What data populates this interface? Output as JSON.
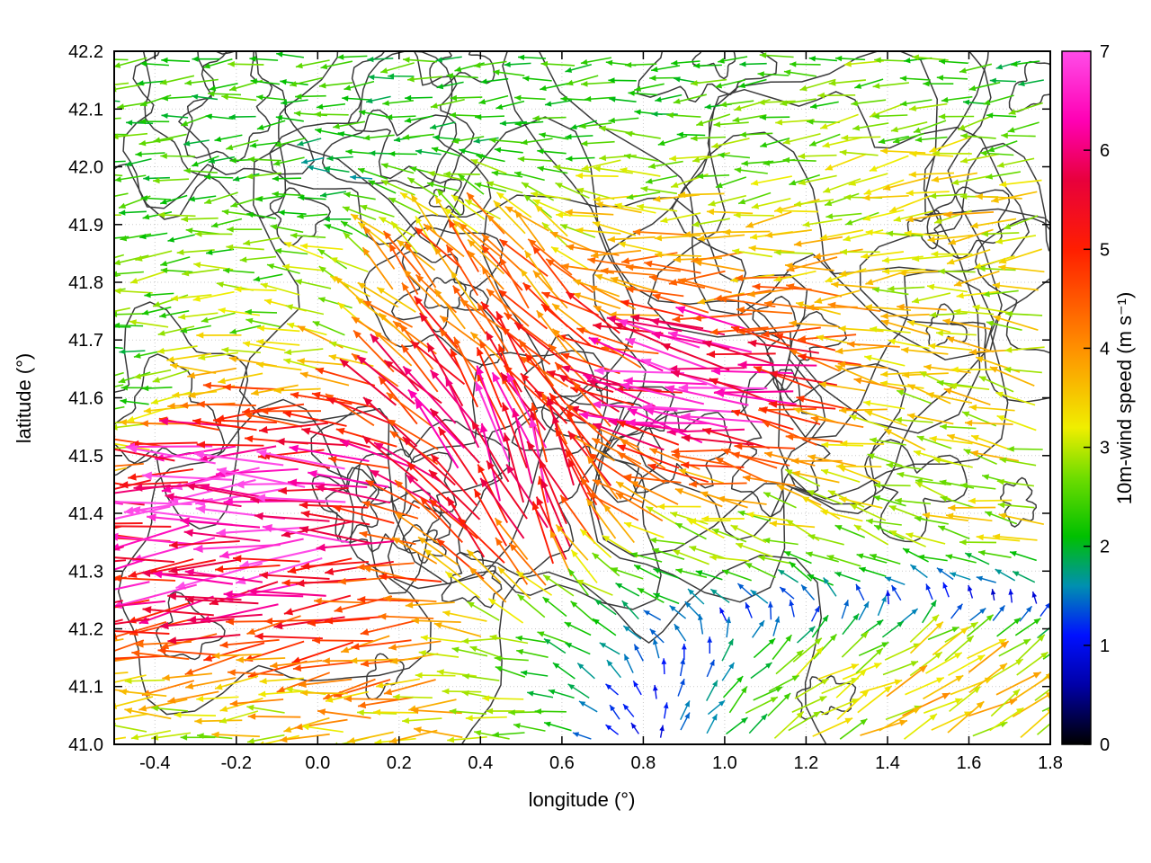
{
  "chart_data": {
    "type": "quiver",
    "title": "",
    "xlabel": "longitude (°)",
    "ylabel": "latitude (°)",
    "xlim": [
      -0.5,
      1.8
    ],
    "ylim": [
      41.0,
      42.2
    ],
    "x_ticks": [
      -0.4,
      -0.2,
      0.0,
      0.2,
      0.4,
      0.6,
      0.8,
      1.0,
      1.2,
      1.4,
      1.6,
      1.8
    ],
    "x_tick_labels": [
      "-0.4",
      "-0.2",
      "0.0",
      "0.2",
      "0.4",
      "0.6",
      "0.8",
      "1.0",
      "1.2",
      "1.4",
      "1.6",
      "1.8"
    ],
    "y_ticks": [
      41.0,
      41.1,
      41.2,
      41.3,
      41.4,
      41.5,
      41.6,
      41.7,
      41.8,
      41.9,
      42.0,
      42.1,
      42.2
    ],
    "y_tick_labels": [
      "41.0",
      "41.1",
      "41.2",
      "41.3",
      "41.4",
      "41.5",
      "41.6",
      "41.7",
      "41.8",
      "41.9",
      "42.0",
      "42.1",
      "42.2"
    ],
    "grid": true,
    "colorbar": {
      "label": "10m-wind speed (m s⁻¹)",
      "min": 0,
      "max": 7,
      "ticks": [
        0,
        1,
        2,
        3,
        4,
        5,
        6,
        7
      ],
      "tick_labels": [
        "0",
        "1",
        "2",
        "3",
        "4",
        "5",
        "6",
        "7"
      ],
      "palette": [
        {
          "v": 0.0,
          "c": "#000000"
        },
        {
          "v": 0.6,
          "c": "#0000a8"
        },
        {
          "v": 1.1,
          "c": "#0010ff"
        },
        {
          "v": 1.6,
          "c": "#0090b0"
        },
        {
          "v": 2.1,
          "c": "#00c000"
        },
        {
          "v": 2.7,
          "c": "#70dd00"
        },
        {
          "v": 3.2,
          "c": "#f0ee00"
        },
        {
          "v": 4.0,
          "c": "#ff9000"
        },
        {
          "v": 5.0,
          "c": "#ff1e00"
        },
        {
          "v": 5.7,
          "c": "#e8003c"
        },
        {
          "v": 6.3,
          "c": "#ff00b4"
        },
        {
          "v": 7.0,
          "c": "#ff4ce8"
        }
      ]
    },
    "contours": {
      "description": "unlabeled black terrain elevation contour lines",
      "color": "#3a3a3a",
      "width": 1.5,
      "seed": 11,
      "loop_count": 34,
      "large_count": 9
    },
    "wind_field": {
      "description": "10 m wind vectors on a regular lon-lat grid; arrow length and color scale with speed; predominantly easterly (arrows point west), turning southerly with 6-7 m/s maxima in the centre and west band, weak 1-2 m/s flow along the northern edge",
      "grid": {
        "nx": 42,
        "ny": 36
      },
      "base": {
        "dir": 180,
        "speed": 3.0,
        "w": 0.55
      },
      "jitter": {
        "seed": 20,
        "dir_deg": 14,
        "speed_frac": 0.18
      },
      "features": [
        {
          "x": 0.5,
          "y": 41.44,
          "rx": 0.22,
          "ry": 0.16,
          "dir": 95,
          "speed": 8.5,
          "w": 1.6
        },
        {
          "x": 0.3,
          "y": 41.56,
          "rx": 0.18,
          "ry": 0.12,
          "dir": 135,
          "speed": 6.5,
          "w": 1.0
        },
        {
          "x": -0.1,
          "y": 41.4,
          "rx": 0.45,
          "ry": 0.14,
          "dir": 183,
          "speed": 8.2,
          "w": 1.5
        },
        {
          "x": -0.32,
          "y": 41.28,
          "rx": 0.3,
          "ry": 0.1,
          "dir": 190,
          "speed": 6.0,
          "w": 1.0
        },
        {
          "x": 0.15,
          "y": 41.2,
          "rx": 0.38,
          "ry": 0.1,
          "dir": 195,
          "speed": 5.0,
          "w": 0.9
        },
        {
          "x": 1.02,
          "y": 41.62,
          "rx": 0.26,
          "ry": 0.13,
          "dir": 168,
          "speed": 8.4,
          "w": 1.3
        },
        {
          "x": 0.72,
          "y": 41.52,
          "rx": 0.16,
          "ry": 0.12,
          "dir": 150,
          "speed": 5.6,
          "w": 0.8
        },
        {
          "x": 0.45,
          "y": 41.82,
          "rx": 0.28,
          "ry": 0.13,
          "dir": 110,
          "speed": 6.2,
          "w": 1.0
        },
        {
          "x": 0.65,
          "y": 41.7,
          "rx": 0.2,
          "ry": 0.12,
          "dir": 130,
          "speed": 5.4,
          "w": 0.8
        },
        {
          "x": 0.6,
          "y": 42.1,
          "rx": 1.2,
          "ry": 0.16,
          "dir": 185,
          "speed": 1.9,
          "w": 1.3
        },
        {
          "x": -0.35,
          "y": 42.0,
          "rx": 0.3,
          "ry": 0.2,
          "dir": 195,
          "speed": 2.2,
          "w": 1.0
        },
        {
          "x": 1.55,
          "y": 41.95,
          "rx": 0.45,
          "ry": 0.2,
          "dir": 195,
          "speed": 3.8,
          "w": 0.9
        },
        {
          "x": 1.6,
          "y": 41.55,
          "rx": 0.4,
          "ry": 0.2,
          "dir": 160,
          "speed": 3.4,
          "w": 0.9
        },
        {
          "x": 1.45,
          "y": 41.08,
          "rx": 0.55,
          "ry": 0.13,
          "dir": 25,
          "speed": 5.0,
          "w": 2.5
        },
        {
          "x": 0.8,
          "y": 41.15,
          "rx": 0.3,
          "ry": 0.12,
          "dir": 140,
          "speed": 2.4,
          "w": 0.9
        },
        {
          "x": -0.45,
          "y": 41.62,
          "rx": 0.12,
          "ry": 0.1,
          "dir": 200,
          "speed": 1.5,
          "w": 0.9
        },
        {
          "x": 0.85,
          "y": 41.85,
          "rx": 0.3,
          "ry": 0.15,
          "dir": 190,
          "speed": 4.5,
          "w": 0.9
        },
        {
          "x": 1.25,
          "y": 41.35,
          "rx": 0.25,
          "ry": 0.15,
          "dir": 150,
          "speed": 3.0,
          "w": 0.7
        },
        {
          "x": 0.35,
          "y": 41.05,
          "rx": 0.4,
          "ry": 0.08,
          "dir": 185,
          "speed": 4.2,
          "w": 0.7
        },
        {
          "x": 1.7,
          "y": 42.15,
          "rx": 0.15,
          "ry": 0.08,
          "dir": 200,
          "speed": 1.2,
          "w": 0.9
        },
        {
          "x": 0.1,
          "y": 42.0,
          "rx": 0.1,
          "ry": 0.06,
          "dir": 170,
          "speed": 0.9,
          "w": 0.8
        },
        {
          "x": -0.48,
          "y": 41.52,
          "rx": 0.1,
          "ry": 0.06,
          "dir": 185,
          "speed": 1.2,
          "w": 0.9
        }
      ]
    }
  },
  "frame": {
    "color": "#000000",
    "grid_color": "#c9c9c9"
  }
}
